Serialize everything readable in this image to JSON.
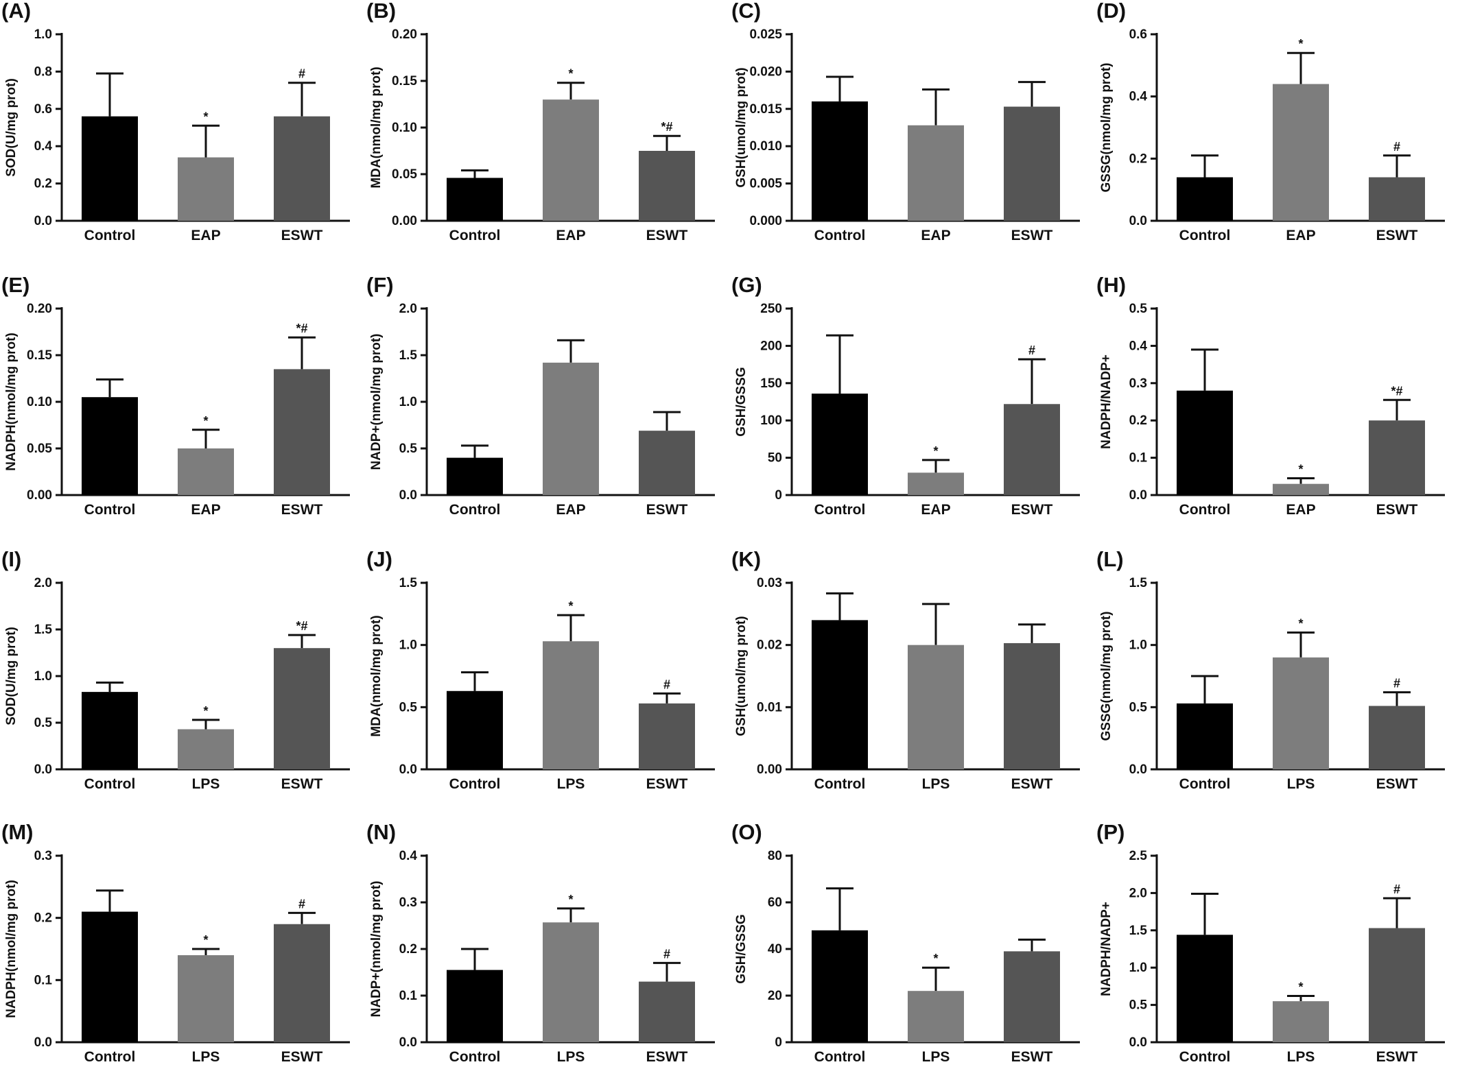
{
  "figure": {
    "colors": {
      "control": "#000000",
      "model": "#7d7d7d",
      "eswt": "#555555",
      "axis": "#111111",
      "background": "#ffffff"
    }
  },
  "chart_data": [
    {
      "panel": "(A)",
      "type": "bar",
      "categories": [
        "Control",
        "EAP",
        "ESWT"
      ],
      "values": [
        0.56,
        0.34,
        0.56
      ],
      "errors": [
        0.23,
        0.17,
        0.18
      ],
      "significance": [
        "",
        "*",
        "#"
      ],
      "ylabel": "SOD(U/mg prot)",
      "ylim": [
        0,
        1.0
      ],
      "yticks": [
        "0.0",
        "0.2",
        "0.4",
        "0.6",
        "0.8",
        "1.0"
      ]
    },
    {
      "panel": "(B)",
      "type": "bar",
      "categories": [
        "Control",
        "EAP",
        "ESWT"
      ],
      "values": [
        0.046,
        0.13,
        0.075
      ],
      "errors": [
        0.008,
        0.018,
        0.016
      ],
      "significance": [
        "",
        "*",
        "*#"
      ],
      "ylabel": "MDA(nmol/mg prot)",
      "ylim": [
        0,
        0.2
      ],
      "yticks": [
        "0.00",
        "0.05",
        "0.10",
        "0.15",
        "0.20"
      ]
    },
    {
      "panel": "(C)",
      "type": "bar",
      "categories": [
        "Control",
        "EAP",
        "ESWT"
      ],
      "values": [
        0.016,
        0.0128,
        0.0153
      ],
      "errors": [
        0.0033,
        0.0048,
        0.0033
      ],
      "significance": [
        "",
        "",
        ""
      ],
      "ylabel": "GSH(umol/mg prot)",
      "ylim": [
        0,
        0.025
      ],
      "yticks": [
        "0.000",
        "0.005",
        "0.010",
        "0.015",
        "0.020",
        "0.025"
      ]
    },
    {
      "panel": "(D)",
      "type": "bar",
      "categories": [
        "Control",
        "EAP",
        "ESWT"
      ],
      "values": [
        0.14,
        0.44,
        0.14
      ],
      "errors": [
        0.07,
        0.1,
        0.07
      ],
      "significance": [
        "",
        "*",
        "#"
      ],
      "ylabel": "GSSG(nmol/mg prot)",
      "ylim": [
        0,
        0.6
      ],
      "yticks": [
        "0.0",
        "0.2",
        "0.4",
        "0.6"
      ]
    },
    {
      "panel": "(E)",
      "type": "bar",
      "categories": [
        "Control",
        "EAP",
        "ESWT"
      ],
      "values": [
        0.105,
        0.05,
        0.135
      ],
      "errors": [
        0.019,
        0.02,
        0.034
      ],
      "significance": [
        "",
        "*",
        "*#"
      ],
      "ylabel": "NADPH(nmol/mg prot)",
      "ylim": [
        0,
        0.2
      ],
      "yticks": [
        "0.00",
        "0.05",
        "0.10",
        "0.15",
        "0.20"
      ]
    },
    {
      "panel": "(F)",
      "type": "bar",
      "categories": [
        "Control",
        "EAP",
        "ESWT"
      ],
      "values": [
        0.4,
        1.42,
        0.69
      ],
      "errors": [
        0.13,
        0.24,
        0.2
      ],
      "significance": [
        "",
        "",
        ""
      ],
      "ylabel": "NADP+(nmol/mg prot)",
      "ylim": [
        0,
        2.0
      ],
      "yticks": [
        "0.0",
        "0.5",
        "1.0",
        "1.5",
        "2.0"
      ]
    },
    {
      "panel": "(G)",
      "type": "bar",
      "categories": [
        "Control",
        "EAP",
        "ESWT"
      ],
      "values": [
        136,
        30,
        122
      ],
      "errors": [
        78,
        17,
        60
      ],
      "significance": [
        "",
        "*",
        "#"
      ],
      "ylabel": "GSH/GSSG",
      "ylim": [
        0,
        250
      ],
      "yticks": [
        "0",
        "50",
        "100",
        "150",
        "200",
        "250"
      ]
    },
    {
      "panel": "(H)",
      "type": "bar",
      "categories": [
        "Control",
        "EAP",
        "ESWT"
      ],
      "values": [
        0.28,
        0.03,
        0.2
      ],
      "errors": [
        0.11,
        0.015,
        0.055
      ],
      "significance": [
        "",
        "*",
        "*#"
      ],
      "ylabel": "NADPH/NADP+",
      "ylim": [
        0,
        0.5
      ],
      "yticks": [
        "0.0",
        "0.1",
        "0.2",
        "0.3",
        "0.4",
        "0.5"
      ]
    },
    {
      "panel": "(I)",
      "type": "bar",
      "categories": [
        "Control",
        "LPS",
        "ESWT"
      ],
      "values": [
        0.83,
        0.43,
        1.3
      ],
      "errors": [
        0.1,
        0.1,
        0.14
      ],
      "significance": [
        "",
        "*",
        "*#"
      ],
      "ylabel": "SOD(U/mg prot)",
      "ylim": [
        0,
        2.0
      ],
      "yticks": [
        "0.0",
        "0.5",
        "1.0",
        "1.5",
        "2.0"
      ]
    },
    {
      "panel": "(J)",
      "type": "bar",
      "categories": [
        "Control",
        "LPS",
        "ESWT"
      ],
      "values": [
        0.63,
        1.03,
        0.53
      ],
      "errors": [
        0.15,
        0.21,
        0.08
      ],
      "significance": [
        "",
        "*",
        "#"
      ],
      "ylabel": "MDA(nmol/mg prot)",
      "ylim": [
        0,
        1.5
      ],
      "yticks": [
        "0.0",
        "0.5",
        "1.0",
        "1.5"
      ]
    },
    {
      "panel": "(K)",
      "type": "bar",
      "categories": [
        "Control",
        "LPS",
        "ESWT"
      ],
      "values": [
        0.024,
        0.02,
        0.0203
      ],
      "errors": [
        0.0043,
        0.0066,
        0.003
      ],
      "significance": [
        "",
        "",
        ""
      ],
      "ylabel": "GSH(umol/mg prot)",
      "ylim": [
        0,
        0.03
      ],
      "yticks": [
        "0.00",
        "0.01",
        "0.02",
        "0.03"
      ]
    },
    {
      "panel": "(L)",
      "type": "bar",
      "categories": [
        "Control",
        "LPS",
        "ESWT"
      ],
      "values": [
        0.53,
        0.9,
        0.51
      ],
      "errors": [
        0.22,
        0.2,
        0.11
      ],
      "significance": [
        "",
        "*",
        "#"
      ],
      "ylabel": "GSSG(nmol/mg prot)",
      "ylim": [
        0,
        1.5
      ],
      "yticks": [
        "0.0",
        "0.5",
        "1.0",
        "1.5"
      ]
    },
    {
      "panel": "(M)",
      "type": "bar",
      "categories": [
        "Control",
        "LPS",
        "ESWT"
      ],
      "values": [
        0.21,
        0.14,
        0.19
      ],
      "errors": [
        0.034,
        0.01,
        0.018
      ],
      "significance": [
        "",
        "*",
        "#"
      ],
      "ylabel": "NADPH(nmol/mg prot)",
      "ylim": [
        0,
        0.3
      ],
      "yticks": [
        "0.0",
        "0.1",
        "0.2",
        "0.3"
      ]
    },
    {
      "panel": "(N)",
      "type": "bar",
      "categories": [
        "Control",
        "LPS",
        "ESWT"
      ],
      "values": [
        0.155,
        0.257,
        0.13
      ],
      "errors": [
        0.045,
        0.03,
        0.04
      ],
      "significance": [
        "",
        "*",
        "#"
      ],
      "ylabel": "NADP+(nmol/mg prot)",
      "ylim": [
        0,
        0.4
      ],
      "yticks": [
        "0.0",
        "0.1",
        "0.2",
        "0.3",
        "0.4"
      ]
    },
    {
      "panel": "(O)",
      "type": "bar",
      "categories": [
        "Control",
        "LPS",
        "ESWT"
      ],
      "values": [
        48,
        22,
        39
      ],
      "errors": [
        18,
        10,
        5
      ],
      "significance": [
        "",
        "*",
        ""
      ],
      "ylabel": "GSH/GSSG",
      "ylim": [
        0,
        80
      ],
      "yticks": [
        "0",
        "20",
        "40",
        "60",
        "80"
      ]
    },
    {
      "panel": "(P)",
      "type": "bar",
      "categories": [
        "Control",
        "LPS",
        "ESWT"
      ],
      "values": [
        1.44,
        0.55,
        1.53
      ],
      "errors": [
        0.55,
        0.07,
        0.4
      ],
      "significance": [
        "",
        "*",
        "#"
      ],
      "ylabel": "NADPH/NADP+",
      "ylim": [
        0,
        2.5
      ],
      "yticks": [
        "0.0",
        "0.5",
        "1.0",
        "1.5",
        "2.0",
        "2.5"
      ]
    }
  ]
}
